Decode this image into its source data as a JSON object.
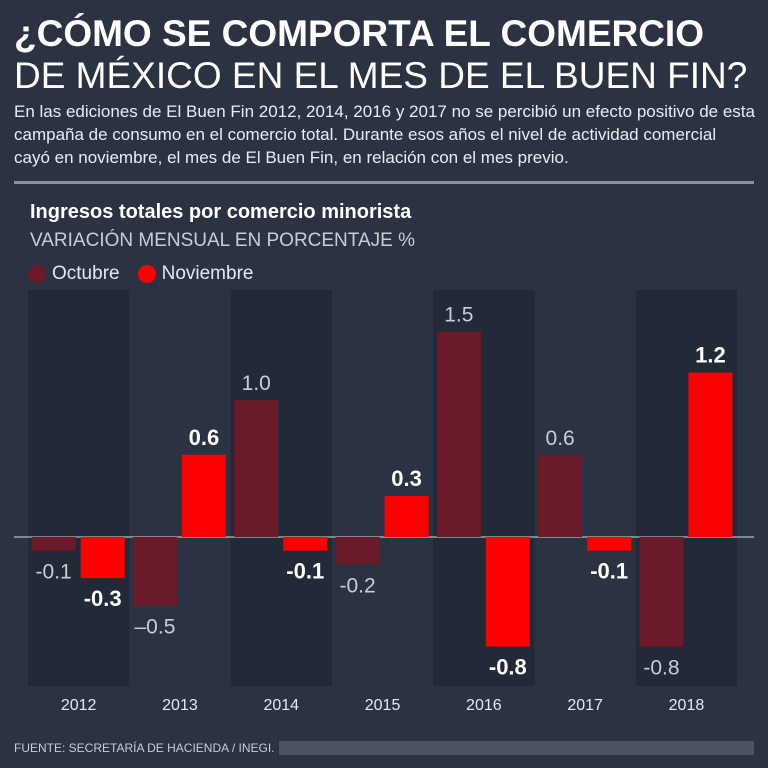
{
  "title_line1": "¿CÓMO SE COMPORTA EL COMERCIO",
  "title_line2": "DE MÉXICO EN EL MES DE EL BUEN FIN?",
  "intro": "En las ediciones de El Buen Fin 2012, 2014, 2016 y 2017 no se percibió un efecto positivo de esta campaña de consumo en el comercio total. Durante esos años el nivel de actividad comercial cayó en noviembre, el mes de El Buen Fin, en relación con el mes previo.",
  "footer": "FUENTE: SECRETARÍA DE HACIENDA / INEGI.",
  "chart_data": {
    "type": "bar",
    "title": "Ingresos totales por comercio minorista",
    "ylabel": "VARIACIÓN MENSUAL EN PORCENTAJE %",
    "categories": [
      "2012",
      "2013",
      "2014",
      "2015",
      "2016",
      "2017",
      "2018"
    ],
    "series": [
      {
        "name": "Octubre",
        "color": "#6a1a29",
        "labels": [
          "-0.1",
          "–0.5",
          "1.0",
          "-0.2",
          "1.5",
          "0.6",
          "-0.8"
        ],
        "values": [
          -0.1,
          -0.5,
          1.0,
          -0.2,
          1.5,
          0.6,
          -0.8
        ]
      },
      {
        "name": "Noviembre",
        "color": "#ff0000",
        "labels": [
          "-0.3",
          "0.6",
          "-0.1",
          "0.3",
          "-0.8",
          "-0.1",
          "1.2"
        ],
        "values": [
          -0.3,
          0.6,
          -0.1,
          0.3,
          -0.8,
          -0.1,
          1.2
        ]
      }
    ],
    "ylim": [
      -1.0,
      1.6
    ],
    "legend": "top-left",
    "grid": false
  }
}
